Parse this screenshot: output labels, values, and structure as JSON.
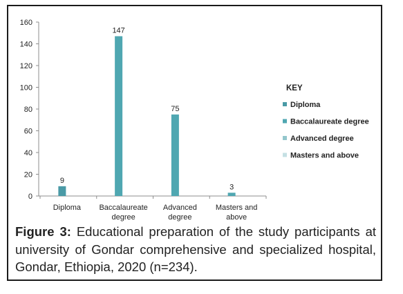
{
  "chart_data": {
    "type": "bar",
    "categories": [
      [
        "Diploma"
      ],
      [
        "Baccalaureate",
        "degree"
      ],
      [
        "Advanced",
        "degree"
      ],
      [
        "Masters and",
        "above"
      ]
    ],
    "series": [
      {
        "name": "Diploma",
        "color": "#4a9aa6",
        "values": [
          9,
          null,
          null,
          null
        ]
      },
      {
        "name": "Baccalaureate degree",
        "color": "#4fa7b1",
        "values": [
          null,
          147,
          null,
          null
        ]
      },
      {
        "name": "Advanced degree",
        "color": "#4fa7b1",
        "values": [
          null,
          null,
          75,
          null
        ]
      },
      {
        "name": "Masters and above",
        "color": "#4fa7b1",
        "values": [
          null,
          null,
          null,
          3
        ]
      }
    ],
    "legend_swatch_colors": [
      "#4a9aa6",
      "#4fa7b1",
      "#93c6cc",
      "#c5e0e4"
    ],
    "data_labels": [
      "9",
      "147",
      "75",
      "3"
    ],
    "ylim": [
      0,
      160
    ],
    "yticks": [
      0,
      20,
      40,
      60,
      80,
      100,
      120,
      140,
      160
    ],
    "legend_title": "KEY",
    "legend_position": "right",
    "grid": false
  },
  "caption": {
    "label": "Figure 3:",
    "text": "Educational preparation of the study participants at university of Gondar comprehensive and specialized hospital, Gondar, Ethiopia, 2020 (n=234)."
  }
}
